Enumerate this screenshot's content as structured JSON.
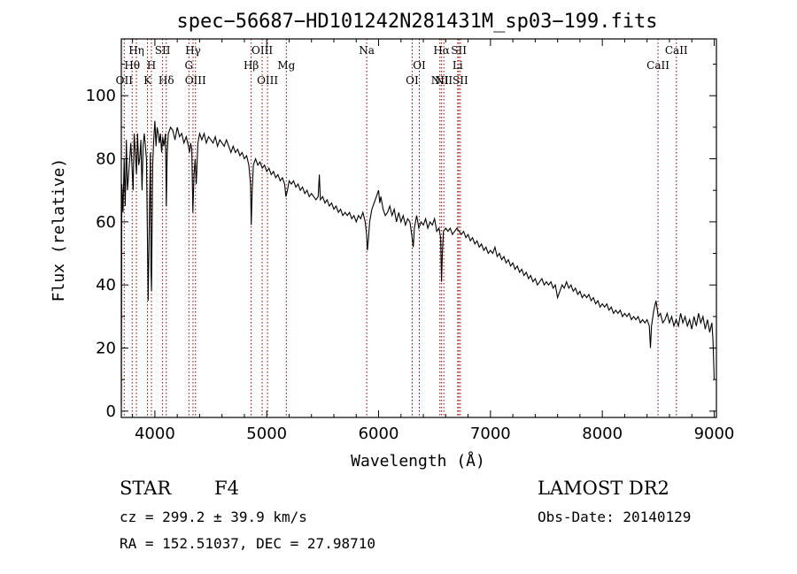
{
  "chart_data": {
    "type": "line",
    "title": "spec−56687−HD101242N281431M_sp03−199.fits",
    "xlabel": "Wavelength (Å)",
    "ylabel": "Flux (relative)",
    "xlim": [
      3700,
      9020
    ],
    "ylim": [
      -2,
      118
    ],
    "x_ticks": [
      4000,
      5000,
      6000,
      7000,
      8000,
      9000
    ],
    "y_ticks": [
      0,
      20,
      40,
      60,
      80,
      100
    ],
    "grid": false,
    "legend": "none",
    "line_color": "#000000",
    "marker_color": "#8b0000",
    "spectrum": [
      [
        3700,
        2
      ],
      [
        3705,
        72
      ],
      [
        3715,
        63
      ],
      [
        3725,
        80
      ],
      [
        3735,
        65
      ],
      [
        3745,
        86
      ],
      [
        3755,
        70
      ],
      [
        3765,
        75
      ],
      [
        3775,
        80
      ],
      [
        3785,
        85
      ],
      [
        3795,
        78
      ],
      [
        3805,
        70
      ],
      [
        3815,
        88
      ],
      [
        3825,
        82
      ],
      [
        3835,
        75
      ],
      [
        3845,
        88
      ],
      [
        3855,
        78
      ],
      [
        3865,
        80
      ],
      [
        3875,
        86
      ],
      [
        3885,
        70
      ],
      [
        3895,
        84
      ],
      [
        3905,
        88
      ],
      [
        3915,
        84
      ],
      [
        3925,
        80
      ],
      [
        3935,
        50
      ],
      [
        3940,
        35
      ],
      [
        3950,
        60
      ],
      [
        3960,
        82
      ],
      [
        3965,
        45
      ],
      [
        3970,
        38
      ],
      [
        3980,
        78
      ],
      [
        3990,
        86
      ],
      [
        4000,
        92
      ],
      [
        4010,
        84
      ],
      [
        4020,
        90
      ],
      [
        4030,
        88
      ],
      [
        4040,
        85
      ],
      [
        4050,
        88
      ],
      [
        4060,
        82
      ],
      [
        4070,
        87
      ],
      [
        4080,
        84
      ],
      [
        4095,
        88
      ],
      [
        4102,
        65
      ],
      [
        4110,
        82
      ],
      [
        4120,
        88
      ],
      [
        4140,
        90
      ],
      [
        4160,
        89
      ],
      [
        4180,
        86
      ],
      [
        4200,
        90
      ],
      [
        4220,
        87
      ],
      [
        4240,
        88
      ],
      [
        4260,
        85
      ],
      [
        4280,
        87
      ],
      [
        4300,
        84
      ],
      [
        4310,
        82
      ],
      [
        4320,
        85
      ],
      [
        4330,
        83
      ],
      [
        4340,
        63
      ],
      [
        4350,
        75
      ],
      [
        4360,
        80
      ],
      [
        4370,
        72
      ],
      [
        4385,
        85
      ],
      [
        4400,
        88
      ],
      [
        4420,
        86
      ],
      [
        4440,
        88
      ],
      [
        4460,
        85
      ],
      [
        4480,
        87
      ],
      [
        4500,
        86
      ],
      [
        4520,
        85
      ],
      [
        4540,
        87
      ],
      [
        4560,
        84
      ],
      [
        4580,
        86
      ],
      [
        4600,
        85
      ],
      [
        4620,
        84
      ],
      [
        4640,
        86
      ],
      [
        4660,
        84
      ],
      [
        4680,
        82
      ],
      [
        4700,
        84
      ],
      [
        4720,
        82
      ],
      [
        4740,
        83
      ],
      [
        4760,
        81
      ],
      [
        4780,
        82
      ],
      [
        4800,
        80
      ],
      [
        4820,
        81
      ],
      [
        4840,
        78
      ],
      [
        4855,
        72
      ],
      [
        4861,
        59
      ],
      [
        4870,
        70
      ],
      [
        4880,
        78
      ],
      [
        4900,
        80
      ],
      [
        4920,
        78
      ],
      [
        4940,
        79
      ],
      [
        4960,
        77
      ],
      [
        4980,
        78
      ],
      [
        5000,
        76
      ],
      [
        5020,
        77
      ],
      [
        5040,
        75
      ],
      [
        5060,
        76
      ],
      [
        5080,
        74
      ],
      [
        5100,
        75
      ],
      [
        5120,
        73
      ],
      [
        5140,
        74
      ],
      [
        5160,
        72
      ],
      [
        5172,
        68
      ],
      [
        5185,
        70
      ],
      [
        5200,
        73
      ],
      [
        5220,
        72
      ],
      [
        5240,
        73
      ],
      [
        5260,
        71
      ],
      [
        5280,
        72
      ],
      [
        5300,
        70
      ],
      [
        5320,
        71
      ],
      [
        5340,
        69
      ],
      [
        5360,
        70
      ],
      [
        5380,
        68
      ],
      [
        5400,
        69
      ],
      [
        5420,
        68
      ],
      [
        5440,
        67
      ],
      [
        5460,
        68
      ],
      [
        5470,
        75
      ],
      [
        5480,
        67
      ],
      [
        5500,
        68
      ],
      [
        5520,
        66
      ],
      [
        5540,
        67
      ],
      [
        5560,
        65
      ],
      [
        5580,
        66
      ],
      [
        5600,
        64
      ],
      [
        5620,
        65
      ],
      [
        5640,
        63
      ],
      [
        5660,
        64
      ],
      [
        5680,
        62
      ],
      [
        5700,
        63
      ],
      [
        5720,
        62
      ],
      [
        5740,
        63
      ],
      [
        5760,
        61
      ],
      [
        5780,
        62
      ],
      [
        5800,
        60
      ],
      [
        5820,
        62
      ],
      [
        5840,
        61
      ],
      [
        5860,
        63
      ],
      [
        5880,
        60
      ],
      [
        5893,
        56
      ],
      [
        5900,
        51
      ],
      [
        5910,
        55
      ],
      [
        5920,
        60
      ],
      [
        5940,
        64
      ],
      [
        5960,
        66
      ],
      [
        5980,
        68
      ],
      [
        6000,
        70
      ],
      [
        6010,
        66
      ],
      [
        6020,
        68
      ],
      [
        6040,
        64
      ],
      [
        6060,
        62
      ],
      [
        6080,
        63
      ],
      [
        6100,
        65
      ],
      [
        6120,
        62
      ],
      [
        6140,
        64
      ],
      [
        6160,
        60
      ],
      [
        6180,
        63
      ],
      [
        6200,
        60
      ],
      [
        6220,
        62
      ],
      [
        6240,
        59
      ],
      [
        6260,
        61
      ],
      [
        6280,
        60
      ],
      [
        6300,
        55
      ],
      [
        6310,
        52
      ],
      [
        6320,
        58
      ],
      [
        6340,
        62
      ],
      [
        6360,
        58
      ],
      [
        6380,
        60
      ],
      [
        6400,
        59
      ],
      [
        6420,
        61
      ],
      [
        6440,
        58
      ],
      [
        6460,
        60
      ],
      [
        6480,
        59
      ],
      [
        6500,
        61
      ],
      [
        6520,
        57
      ],
      [
        6540,
        58
      ],
      [
        6555,
        55
      ],
      [
        6563,
        41
      ],
      [
        6570,
        50
      ],
      [
        6580,
        57
      ],
      [
        6600,
        58
      ],
      [
        6620,
        57
      ],
      [
        6640,
        58
      ],
      [
        6660,
        56
      ],
      [
        6680,
        57
      ],
      [
        6700,
        58
      ],
      [
        6720,
        57
      ],
      [
        6740,
        56
      ],
      [
        6760,
        57
      ],
      [
        6780,
        55
      ],
      [
        6800,
        56
      ],
      [
        6820,
        54
      ],
      [
        6840,
        55
      ],
      [
        6860,
        53
      ],
      [
        6880,
        54
      ],
      [
        6900,
        52
      ],
      [
        6920,
        53
      ],
      [
        6940,
        51
      ],
      [
        6960,
        52
      ],
      [
        6980,
        50
      ],
      [
        7000,
        51
      ],
      [
        7020,
        50
      ],
      [
        7040,
        52
      ],
      [
        7060,
        49
      ],
      [
        7080,
        50
      ],
      [
        7100,
        48
      ],
      [
        7120,
        49
      ],
      [
        7140,
        47
      ],
      [
        7160,
        48
      ],
      [
        7180,
        46
      ],
      [
        7200,
        47
      ],
      [
        7220,
        45
      ],
      [
        7240,
        46
      ],
      [
        7260,
        44
      ],
      [
        7280,
        45
      ],
      [
        7300,
        43
      ],
      [
        7320,
        44
      ],
      [
        7340,
        42
      ],
      [
        7360,
        43
      ],
      [
        7380,
        41
      ],
      [
        7400,
        42
      ],
      [
        7420,
        40
      ],
      [
        7440,
        41
      ],
      [
        7460,
        42
      ],
      [
        7480,
        40
      ],
      [
        7500,
        41
      ],
      [
        7520,
        40
      ],
      [
        7540,
        41
      ],
      [
        7560,
        39
      ],
      [
        7580,
        40
      ],
      [
        7600,
        36
      ],
      [
        7620,
        38
      ],
      [
        7640,
        40
      ],
      [
        7660,
        39
      ],
      [
        7680,
        41
      ],
      [
        7700,
        39
      ],
      [
        7720,
        40
      ],
      [
        7740,
        38
      ],
      [
        7760,
        39
      ],
      [
        7780,
        37
      ],
      [
        7800,
        38
      ],
      [
        7820,
        36
      ],
      [
        7840,
        37
      ],
      [
        7860,
        36
      ],
      [
        7880,
        37
      ],
      [
        7900,
        35
      ],
      [
        7920,
        36
      ],
      [
        7940,
        34
      ],
      [
        7960,
        35
      ],
      [
        7980,
        33
      ],
      [
        8000,
        34
      ],
      [
        8020,
        33
      ],
      [
        8040,
        34
      ],
      [
        8060,
        32
      ],
      [
        8080,
        33
      ],
      [
        8100,
        31
      ],
      [
        8120,
        32
      ],
      [
        8140,
        31
      ],
      [
        8160,
        32
      ],
      [
        8180,
        30
      ],
      [
        8200,
        31
      ],
      [
        8220,
        30
      ],
      [
        8240,
        31
      ],
      [
        8260,
        29
      ],
      [
        8280,
        30
      ],
      [
        8300,
        29
      ],
      [
        8320,
        30
      ],
      [
        8340,
        28
      ],
      [
        8360,
        29
      ],
      [
        8380,
        28
      ],
      [
        8400,
        29
      ],
      [
        8420,
        27
      ],
      [
        8430,
        20
      ],
      [
        8440,
        27
      ],
      [
        8460,
        32
      ],
      [
        8480,
        35
      ],
      [
        8500,
        30
      ],
      [
        8520,
        31
      ],
      [
        8540,
        28
      ],
      [
        8560,
        29
      ],
      [
        8580,
        31
      ],
      [
        8600,
        28
      ],
      [
        8620,
        30
      ],
      [
        8640,
        27
      ],
      [
        8660,
        29
      ],
      [
        8680,
        27
      ],
      [
        8700,
        31
      ],
      [
        8720,
        28
      ],
      [
        8740,
        30
      ],
      [
        8760,
        27
      ],
      [
        8780,
        29
      ],
      [
        8800,
        26
      ],
      [
        8820,
        30
      ],
      [
        8840,
        27
      ],
      [
        8860,
        31
      ],
      [
        8880,
        28
      ],
      [
        8900,
        30
      ],
      [
        8920,
        26
      ],
      [
        8940,
        29
      ],
      [
        8960,
        25
      ],
      [
        8980,
        28
      ],
      [
        8990,
        22
      ],
      [
        9000,
        10
      ]
    ],
    "lines": [
      {
        "x": 3726,
        "label": "OII",
        "row": 3
      },
      {
        "x": 3797,
        "label": "Hθ",
        "row": 2
      },
      {
        "x": 3835,
        "label": "Hη",
        "row": 1
      },
      {
        "x": 3934,
        "label": "K",
        "row": 3
      },
      {
        "x": 3969,
        "label": "H",
        "row": 2
      },
      {
        "x": 4069,
        "label": "SII",
        "row": 1
      },
      {
        "x": 4102,
        "label": "Hδ",
        "row": 3
      },
      {
        "x": 4304,
        "label": "G",
        "row": 2
      },
      {
        "x": 4341,
        "label": "Hγ",
        "row": 1
      },
      {
        "x": 4363,
        "label": "OIII",
        "row": 3
      },
      {
        "x": 4861,
        "label": "Hβ",
        "row": 2
      },
      {
        "x": 4959,
        "label": "OIII",
        "row": 1
      },
      {
        "x": 5007,
        "label": "OIII",
        "row": 3
      },
      {
        "x": 5175,
        "label": "Mg",
        "row": 2
      },
      {
        "x": 5894,
        "label": "Na",
        "row": 1
      },
      {
        "x": 6300,
        "label": "OI",
        "row": 3
      },
      {
        "x": 6364,
        "label": "OI",
        "row": 2
      },
      {
        "x": 6548,
        "label": "NII",
        "row": 3
      },
      {
        "x": 6563,
        "label": "Hα",
        "row": 1
      },
      {
        "x": 6583,
        "label": "NII",
        "row": 3
      },
      {
        "x": 6707,
        "label": "Li",
        "row": 2
      },
      {
        "x": 6717,
        "label": "SII",
        "row": 1
      },
      {
        "x": 6731,
        "label": "SII",
        "row": 3
      },
      {
        "x": 8498,
        "label": "CaII",
        "row": 2
      },
      {
        "x": 8662,
        "label": "CaII",
        "row": 1
      }
    ]
  },
  "info": {
    "object_class": "STAR",
    "subclass": "F4",
    "survey": "LAMOST DR2",
    "redshift_line": "cz = 299.2 ± 39.9 km/s",
    "obs_date": "Obs-Date: 20140129",
    "coords": "RA = 152.51037, DEC =  27.98710"
  }
}
